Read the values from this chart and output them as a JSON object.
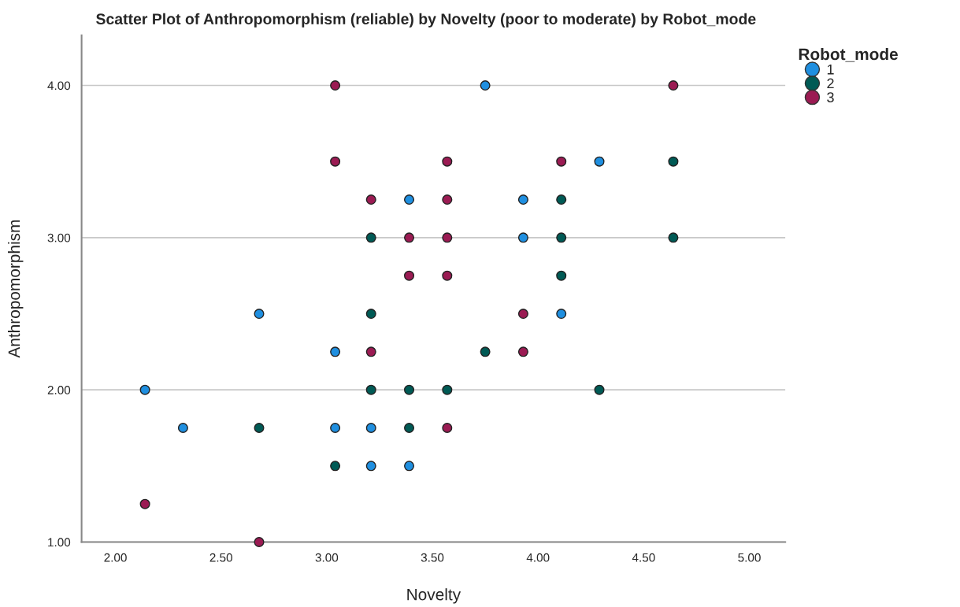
{
  "chart_data": {
    "type": "scatter",
    "title": "Scatter Plot of Anthropomorphism (reliable) by Novelty (poor to moderate) by Robot_mode",
    "xlabel": "Novelty",
    "ylabel": "Anthropomorphism",
    "legend_title": "Robot_mode",
    "xlim": [
      1.84,
      5.17
    ],
    "xticks": [
      {
        "value": 2,
        "label": "2.00"
      },
      {
        "value": 2.5,
        "label": "2.50"
      },
      {
        "value": 3,
        "label": "3.00"
      },
      {
        "value": 3.5,
        "label": "3.50"
      },
      {
        "value": 4,
        "label": "4.00"
      },
      {
        "value": 4.5,
        "label": "4.50"
      },
      {
        "value": 5,
        "label": "5.00"
      }
    ],
    "ylim": [
      1.0,
      4.33
    ],
    "yticks": [
      {
        "value": 1,
        "label": "1.00"
      },
      {
        "value": 2,
        "label": "2.00"
      },
      {
        "value": 3,
        "label": "3.00"
      },
      {
        "value": 4,
        "label": "4.00"
      }
    ],
    "grid": "y",
    "legend": "top right",
    "marker": "circle",
    "series": [
      {
        "name": "1",
        "color": "#1f8fe0",
        "x": [
          3.75,
          4.29,
          3.39,
          3.93,
          3.93,
          4.11,
          2.68,
          3.04,
          2.14,
          2.32,
          3.04,
          3.21,
          3.21,
          3.39
        ],
        "values": [
          4.0,
          3.5,
          3.25,
          3.25,
          3.0,
          2.5,
          2.5,
          2.25,
          2.0,
          1.75,
          1.75,
          1.75,
          1.5,
          1.5
        ]
      },
      {
        "name": "2",
        "color": "#005a55",
        "x": [
          4.64,
          4.11,
          3.21,
          4.11,
          4.64,
          4.11,
          3.21,
          3.75,
          3.21,
          3.39,
          3.57,
          4.29,
          2.68,
          3.39,
          3.04
        ],
        "values": [
          3.5,
          3.25,
          3.0,
          3.0,
          3.0,
          2.75,
          2.5,
          2.25,
          2.0,
          2.0,
          2.0,
          2.0,
          1.75,
          1.75,
          1.5
        ]
      },
      {
        "name": "3",
        "color": "#9b1b53",
        "x": [
          3.04,
          4.64,
          3.04,
          3.57,
          4.11,
          3.21,
          3.57,
          3.39,
          3.57,
          3.39,
          3.57,
          3.93,
          3.21,
          3.93,
          3.57,
          2.14,
          2.68
        ],
        "values": [
          4.0,
          4.0,
          3.5,
          3.5,
          3.5,
          3.25,
          3.25,
          3.0,
          3.0,
          2.75,
          2.75,
          2.5,
          2.25,
          2.25,
          1.75,
          1.25,
          1.0
        ]
      }
    ]
  }
}
